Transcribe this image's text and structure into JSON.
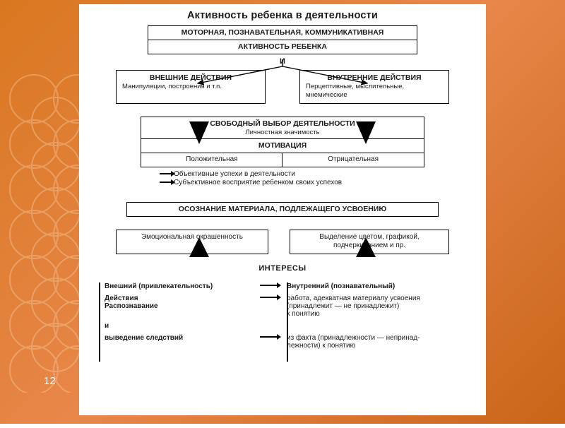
{
  "slide": {
    "page_number": "12",
    "bg_gradient": [
      "#d97720",
      "#e8874a",
      "#c96418"
    ],
    "pattern_color": "#f8dcb6",
    "doc_bg": "#ffffff",
    "text_color": "#1a1a1a",
    "border_color": "#000000"
  },
  "diagram": {
    "type": "flowchart",
    "title": "Активность ребенка в деятельности",
    "title_fontsize": 14.5,
    "body_fontsize": 10,
    "top_box_1": "МОТОРНАЯ, ПОЗНАВАТЕЛЬНАЯ, КОММУНИКАТИВНАЯ",
    "top_box_2": "АКТИВНОСТЬ РЕБЕНКА",
    "conj": "И",
    "external": {
      "heading": "ВНЕШНИЕ ДЕЙСТВИЯ",
      "sub": "Манипуляции, построения и т.п."
    },
    "internal": {
      "heading": "ВНУТРЕННИЕ ДЕЙСТВИЯ",
      "sub": "Перцептивные, мыслительные, мнемические"
    },
    "free_choice": {
      "heading": "СВОБОДНЫЙ ВЫБОР ДЕЯТЕЛЬНОСТИ",
      "sub": "Личностная значимость"
    },
    "motivation": {
      "heading": "МОТИВАЦИЯ",
      "positive": "Положительная",
      "negative": "Отрицательная"
    },
    "bullets": [
      "Объективные успехи в деятельности",
      "Субъективное восприятие ребенком своих успехов"
    ],
    "realization": "ОСОЗНАНИЕ МАТЕРИАЛА, ПОДЛЕЖАЩЕГО УСВОЕНИЮ",
    "realization_left": "Эмоциональная окрашенность",
    "realization_right": "Выделение цветом, графикой, подчеркиванием и пр.",
    "interests_label": "ИНТЕРЕСЫ",
    "table": {
      "rows": [
        {
          "left": "Внешний (привлекательность)",
          "right": "Внутренний (познавательный)",
          "left_bold": true,
          "right_bold": true
        },
        {
          "left": "Действия\nРаспознавание",
          "right": "работа, адекватная материалу усвоения\n(принадлежит — не принадлежит)\nк понятию",
          "left_bold": true,
          "right_bold": false
        },
        {
          "left": "и",
          "right": "",
          "left_bold": true,
          "right_bold": false,
          "no_arrow": true
        },
        {
          "left": "выведение следствий",
          "right": "из факта (принадлежности — непринад-\nлежности) к понятию",
          "left_bold": true,
          "right_bold": false
        }
      ]
    }
  }
}
